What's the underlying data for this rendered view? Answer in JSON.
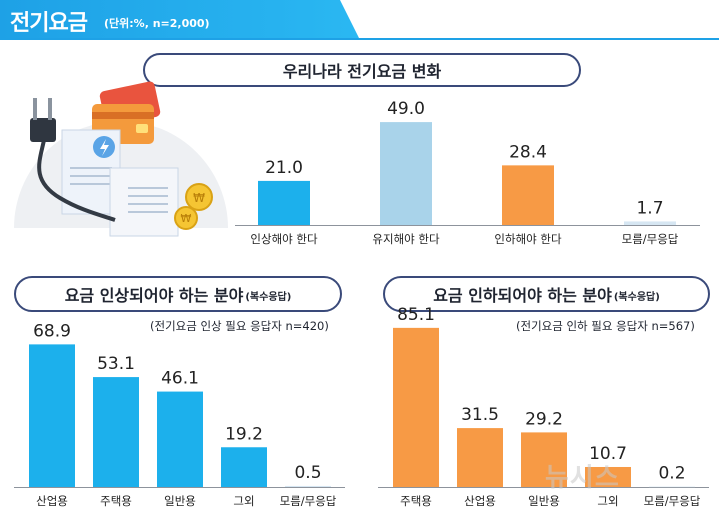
{
  "header": {
    "title": "전기요금",
    "unit_note": "(단위:%, n=2,000)"
  },
  "colors": {
    "accent_blue": "#1ea1e6",
    "bar_blue": "#1cb0ec",
    "bar_lightblue": "#a9d3ea",
    "bar_orange": "#f79a45",
    "bar_pale": "#d6e6f2",
    "pill_border": "#3a4a7a"
  },
  "watermark": "뉴시스",
  "chart_data": [
    {
      "type": "bar",
      "title": "우리나라 전기요금 변화",
      "subtitle": "",
      "categories": [
        "인상해야 한다",
        "유지해야 한다",
        "인하해야 한다",
        "모름/무응답"
      ],
      "values": [
        21.0,
        49.0,
        28.4,
        1.7
      ],
      "value_labels": [
        "21.0",
        "49.0",
        "28.4",
        "1.7"
      ],
      "bar_colors": [
        "#1cb0ec",
        "#a9d3ea",
        "#f79a45",
        "#d6e6f2"
      ],
      "xlabel": "",
      "ylabel": "",
      "ylim": [
        0,
        50
      ]
    },
    {
      "type": "bar",
      "title": "요금 인상되어야 하는 분야",
      "title_suffix": "(복수응답)",
      "subtitle": "(전기요금 인상 필요 응답자 n=420)",
      "categories": [
        "산업용",
        "주택용",
        "일반용",
        "그외",
        "모름/무응답"
      ],
      "values": [
        68.9,
        53.1,
        46.1,
        19.2,
        0.5
      ],
      "value_labels": [
        "68.9",
        "53.1",
        "46.1",
        "19.2",
        "0.5"
      ],
      "bar_colors": [
        "#1cb0ec",
        "#1cb0ec",
        "#1cb0ec",
        "#1cb0ec",
        "#d6e6f2"
      ],
      "xlabel": "",
      "ylabel": "",
      "ylim": [
        0,
        100
      ]
    },
    {
      "type": "bar",
      "title": "요금 인하되어야 하는 분야",
      "title_suffix": "(복수응답)",
      "subtitle": "(전기요금 인하 필요 응답자 n=567)",
      "categories": [
        "주택용",
        "산업용",
        "일반용",
        "그외",
        "모름/무응답"
      ],
      "values": [
        85.1,
        31.5,
        29.2,
        10.7,
        0.2
      ],
      "value_labels": [
        "85.1",
        "31.5",
        "29.2",
        "10.7",
        "0.2"
      ],
      "bar_colors": [
        "#f79a45",
        "#f79a45",
        "#f79a45",
        "#f79a45",
        "#d6e6f2"
      ],
      "xlabel": "",
      "ylabel": "",
      "ylim": [
        0,
        100
      ]
    }
  ]
}
